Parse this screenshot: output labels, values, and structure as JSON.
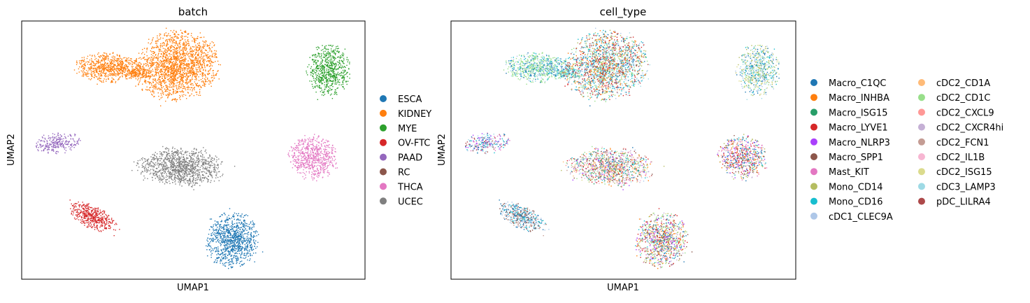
{
  "chart_data": [
    {
      "type": "scatter",
      "title": "batch",
      "xlabel": "UMAP1",
      "ylabel": "UMAP2",
      "legend_position": "right",
      "legend_columns": 1,
      "series": [
        {
          "name": "ESCA",
          "color": "#1f77b4"
        },
        {
          "name": "KIDNEY",
          "color": "#ff7f0e"
        },
        {
          "name": "MYE",
          "color": "#2ca02c"
        },
        {
          "name": "OV-FTC",
          "color": "#d62728"
        },
        {
          "name": "PAAD",
          "color": "#9467bd"
        },
        {
          "name": "RC",
          "color": "#8c564b"
        },
        {
          "name": "THCA",
          "color": "#e377c2"
        },
        {
          "name": "UCEC",
          "color": "#7f7f7f"
        }
      ]
    },
    {
      "type": "scatter",
      "title": "cell_type",
      "xlabel": "UMAP1",
      "ylabel": "UMAP2",
      "legend_position": "right",
      "legend_columns": 2,
      "series": [
        {
          "name": "Macro_C1QC",
          "color": "#1f77b4"
        },
        {
          "name": "Macro_INHBA",
          "color": "#ff7f0e"
        },
        {
          "name": "Macro_ISG15",
          "color": "#279e68"
        },
        {
          "name": "Macro_LYVE1",
          "color": "#d62728"
        },
        {
          "name": "Macro_NLRP3",
          "color": "#aa40fc"
        },
        {
          "name": "Macro_SPP1",
          "color": "#8c564b"
        },
        {
          "name": "Mast_KIT",
          "color": "#e377c2"
        },
        {
          "name": "Mono_CD14",
          "color": "#b5bd61"
        },
        {
          "name": "Mono_CD16",
          "color": "#17becf"
        },
        {
          "name": "cDC1_CLEC9A",
          "color": "#aec7e8"
        },
        {
          "name": "cDC2_CD1A",
          "color": "#ffbb78"
        },
        {
          "name": "cDC2_CD1C",
          "color": "#98df8a"
        },
        {
          "name": "cDC2_CXCL9",
          "color": "#ff9896"
        },
        {
          "name": "cDC2_CXCR4hi",
          "color": "#c5b0d5"
        },
        {
          "name": "cDC2_FCN1",
          "color": "#c49c94"
        },
        {
          "name": "cDC2_IL1B",
          "color": "#f7b6d2"
        },
        {
          "name": "cDC2_ISG15",
          "color": "#dbdb8d"
        },
        {
          "name": "cDC3_LAMP3",
          "color": "#9edae5"
        },
        {
          "name": "pDC_LILRA4",
          "color": "#ad494a"
        }
      ]
    }
  ]
}
